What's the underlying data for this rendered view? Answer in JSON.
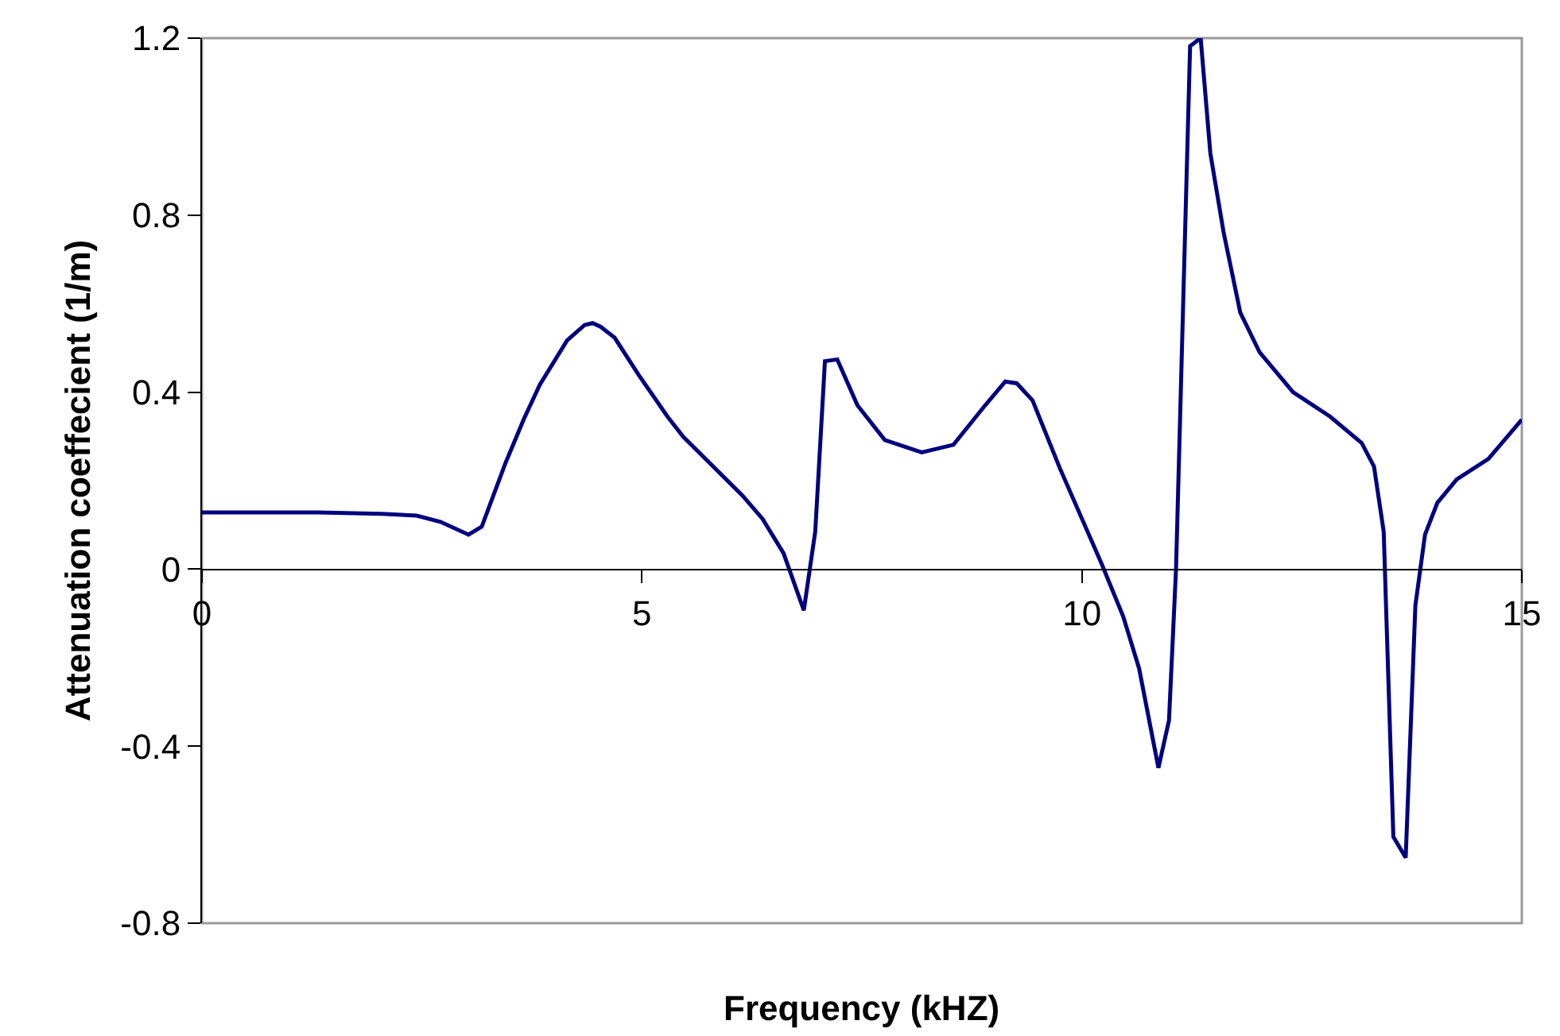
{
  "chart_data": {
    "type": "line",
    "xlabel": "Frequency (kHZ)",
    "ylabel": "Attenuation coeffecient (1/m)",
    "xlim": [
      0,
      15
    ],
    "xticks": [
      0,
      5,
      10,
      15
    ],
    "ylim": [
      -0.8,
      1.2
    ],
    "yticks": [
      -0.8,
      -0.4,
      0,
      0.4,
      0.8,
      1.2
    ],
    "grid": false,
    "legend": false,
    "marker": "none",
    "line_style": "solid",
    "series": [
      {
        "color": "#000080",
        "x": [
          0,
          1.32,
          2.04,
          2.44,
          2.71,
          3.03,
          3.18,
          3.45,
          3.66,
          3.84,
          4.15,
          4.35,
          4.44,
          4.53,
          4.69,
          4.96,
          5.29,
          5.47,
          6.14,
          6.37,
          6.61,
          6.84,
          6.97,
          7.08,
          7.22,
          7.45,
          7.76,
          8.18,
          8.54,
          8.9,
          9.13,
          9.26,
          9.44,
          9.75,
          10.22,
          10.47,
          10.65,
          10.87,
          10.99,
          11.07,
          11.23,
          11.35,
          11.46,
          11.61,
          11.8,
          12.02,
          12.4,
          12.82,
          13.18,
          13.32,
          13.43,
          13.54,
          13.68,
          13.79,
          13.9,
          14.04,
          14.26,
          14.62,
          15
        ],
        "values": [
          0.128,
          0.128,
          0.125,
          0.121,
          0.107,
          0.078,
          0.096,
          0.24,
          0.34,
          0.417,
          0.517,
          0.552,
          0.556,
          0.548,
          0.523,
          0.44,
          0.345,
          0.299,
          0.167,
          0.114,
          0.036,
          -0.093,
          0.085,
          0.47,
          0.474,
          0.37,
          0.292,
          0.264,
          0.281,
          0.37,
          0.424,
          0.42,
          0.381,
          0.228,
          0.014,
          -0.107,
          -0.224,
          -0.449,
          -0.342,
          0,
          1.182,
          1.2,
          0.94,
          0.762,
          0.58,
          0.49,
          0.4,
          0.345,
          0.285,
          0.232,
          0.085,
          -0.605,
          -0.652,
          -0.082,
          0.078,
          0.15,
          0.203,
          0.249,
          0.338
        ]
      }
    ]
  }
}
